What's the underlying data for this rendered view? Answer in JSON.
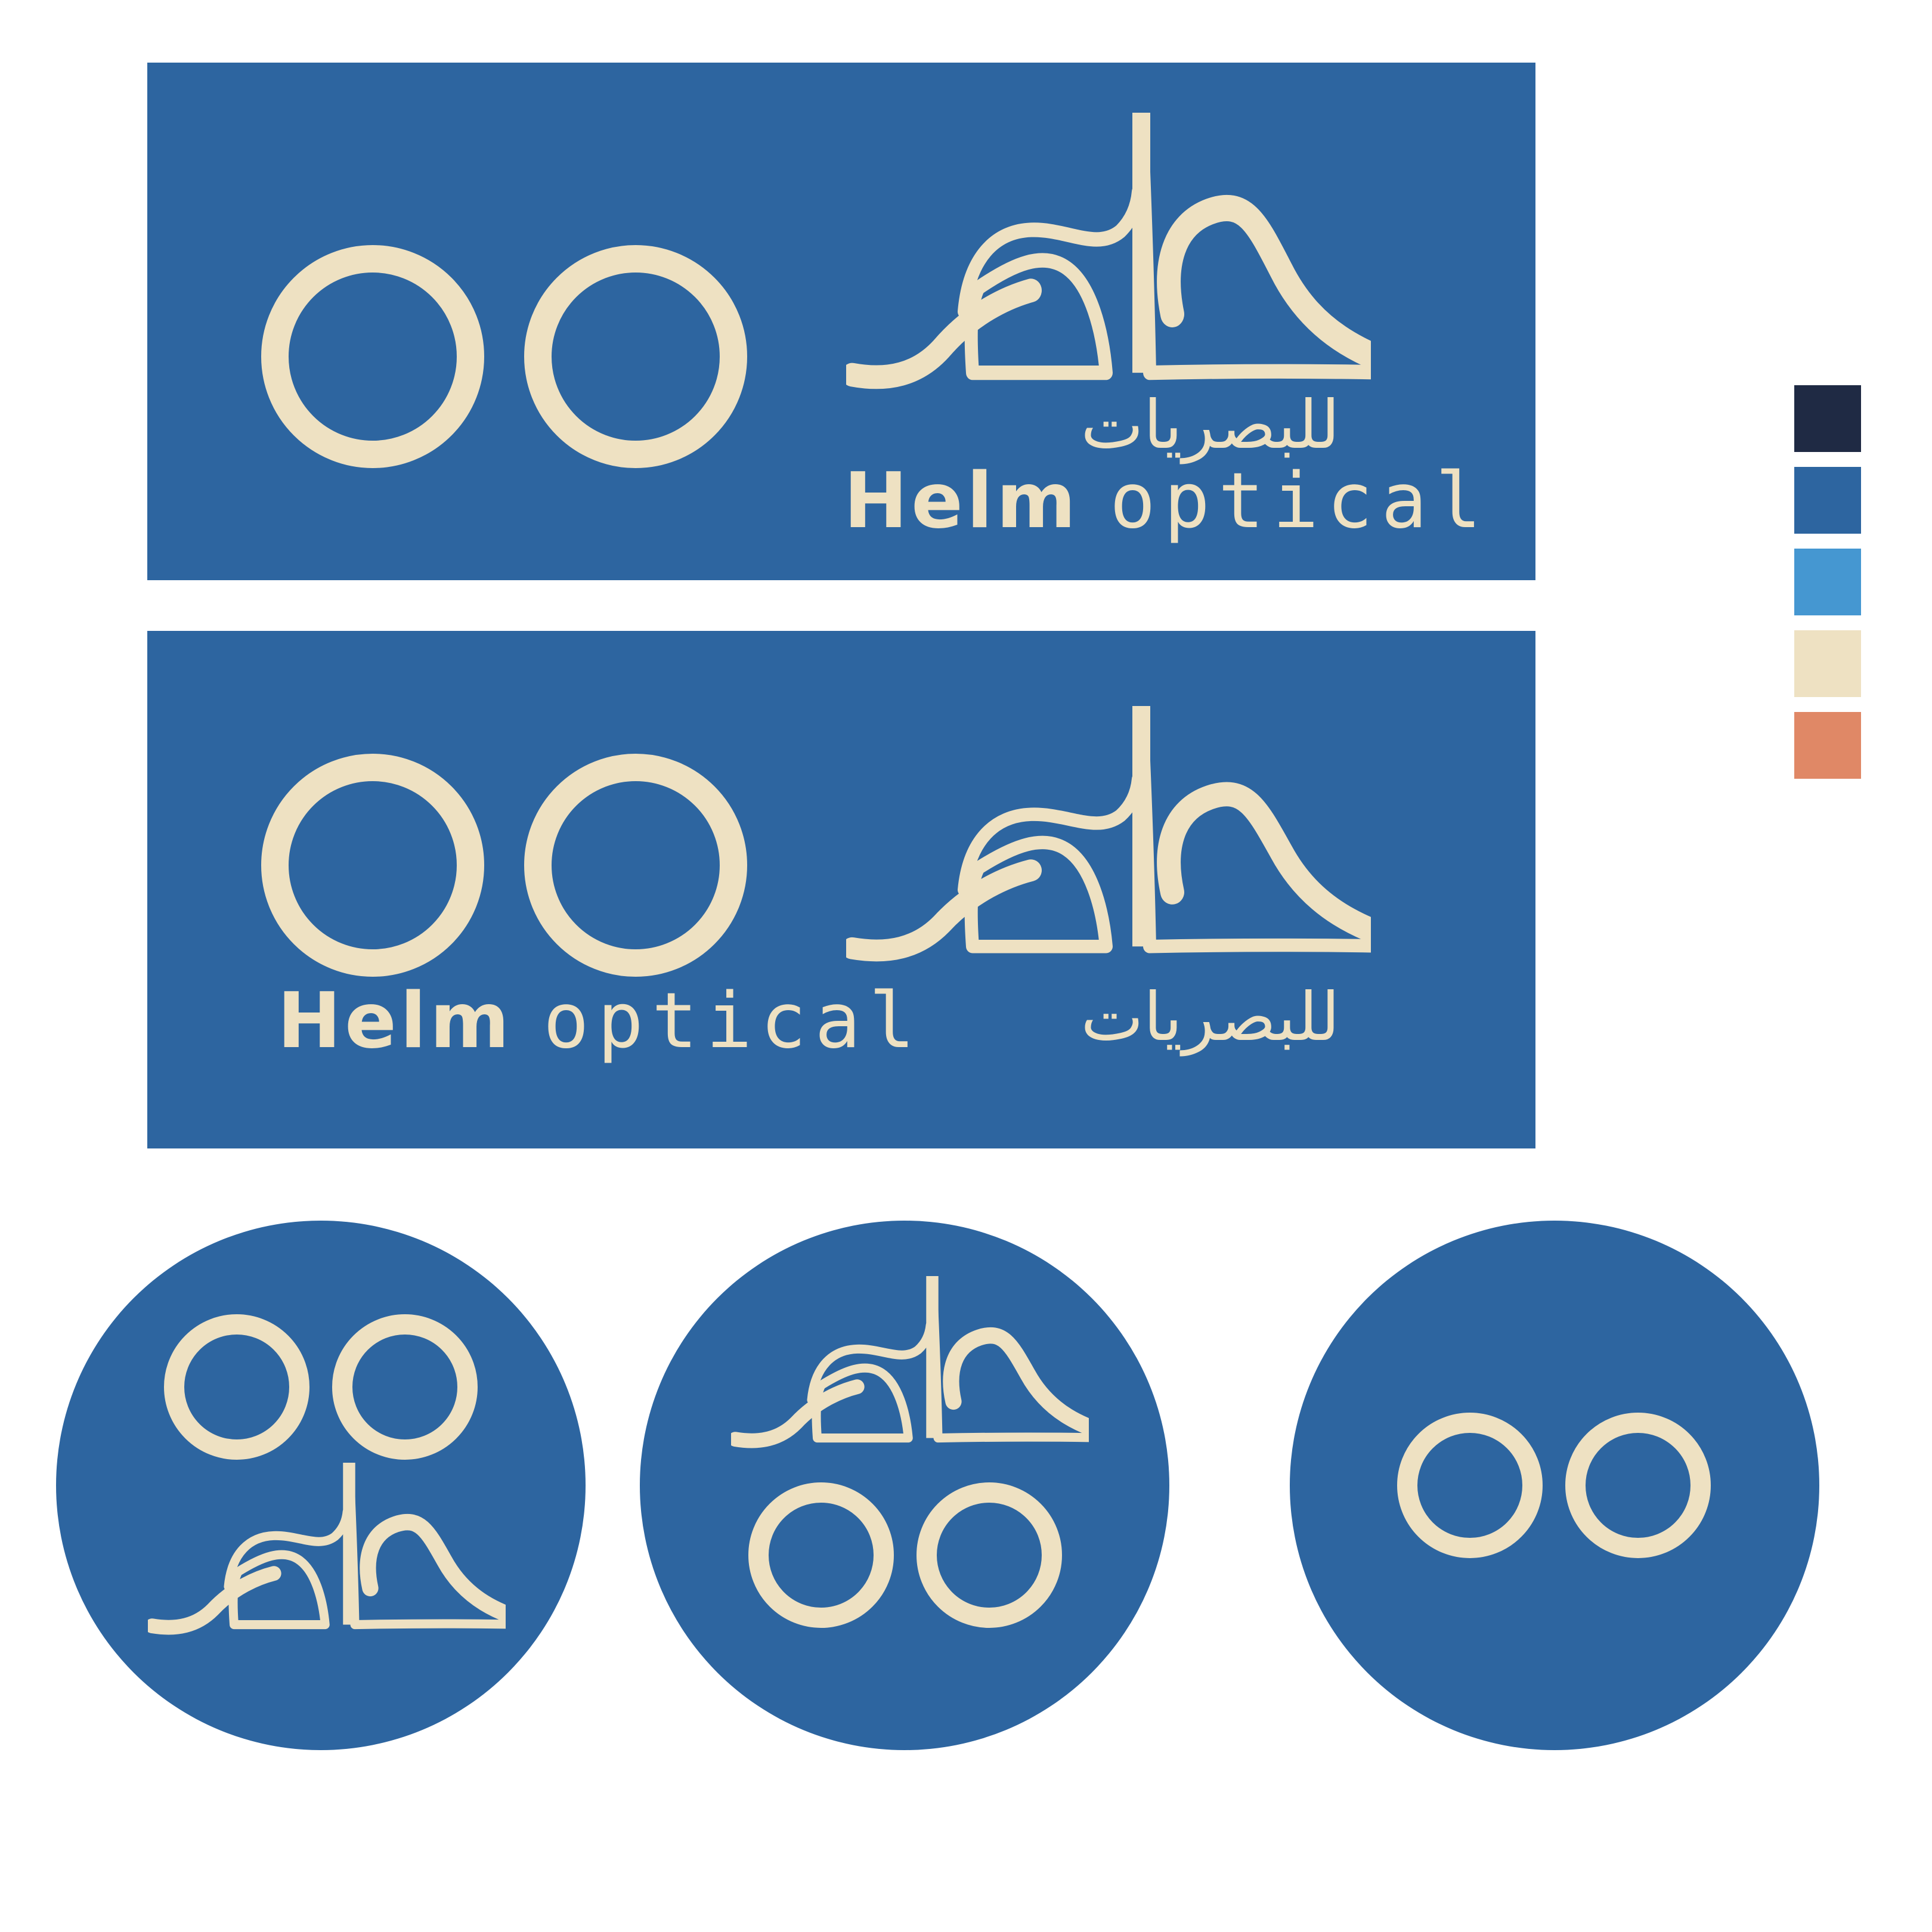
{
  "brand": {
    "name_bold": "Helm",
    "name_light": "optical",
    "name_arabic": "للبصريات"
  },
  "logo_variants": [
    {
      "id": "horizontal-stacked",
      "shape": "rectangle"
    },
    {
      "id": "horizontal-split",
      "shape": "rectangle"
    },
    {
      "id": "rings-over-mark",
      "shape": "circle"
    },
    {
      "id": "mark-over-rings",
      "shape": "circle"
    },
    {
      "id": "rings-only",
      "shape": "circle"
    }
  ],
  "colors": {
    "background": "#ffffff",
    "panel": "#2d65a0",
    "cream": "#eee1c2"
  },
  "palette": [
    {
      "name": "navy",
      "hex": "#1f2a44"
    },
    {
      "name": "blue",
      "hex": "#2d65a0"
    },
    {
      "name": "sky",
      "hex": "#4597d1"
    },
    {
      "name": "cream",
      "hex": "#eee1c2"
    },
    {
      "name": "coral",
      "hex": "#e08866"
    }
  ]
}
